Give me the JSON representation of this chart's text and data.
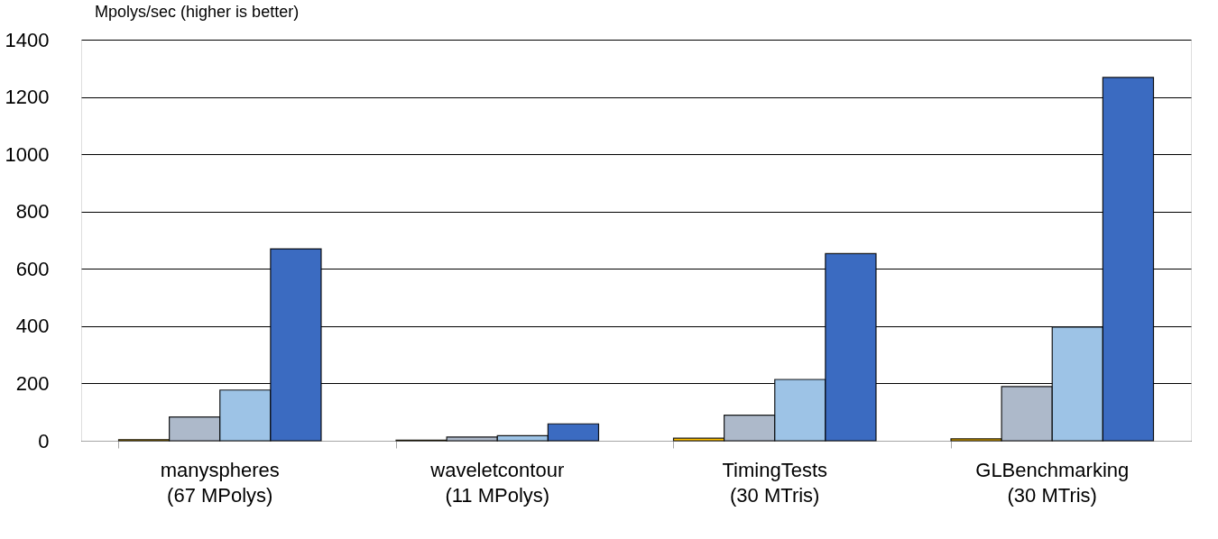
{
  "chart_data": {
    "type": "bar",
    "title": "Mpolys/sec (higher is better)",
    "categories": [
      "manyspheres\n(67 MPolys)",
      "waveletcontour\n(11 MPolys)",
      "TimingTests\n(30 MTris)",
      "GLBenchmarking\n(30 MTris)"
    ],
    "series": [
      {
        "color": "#ffc000",
        "values": [
          4,
          2,
          9,
          7
        ]
      },
      {
        "color": "#adb9ca",
        "values": [
          83,
          13,
          89,
          189
        ]
      },
      {
        "color": "#9dc3e6",
        "values": [
          177,
          18,
          214,
          397
        ]
      },
      {
        "color": "#3b6bc1",
        "values": [
          670,
          59,
          653,
          1268
        ]
      }
    ],
    "ylim": [
      0,
      1400
    ],
    "yticks": [
      0,
      200,
      400,
      600,
      800,
      1000,
      1200,
      1400
    ],
    "grid": "y",
    "legend": false
  }
}
